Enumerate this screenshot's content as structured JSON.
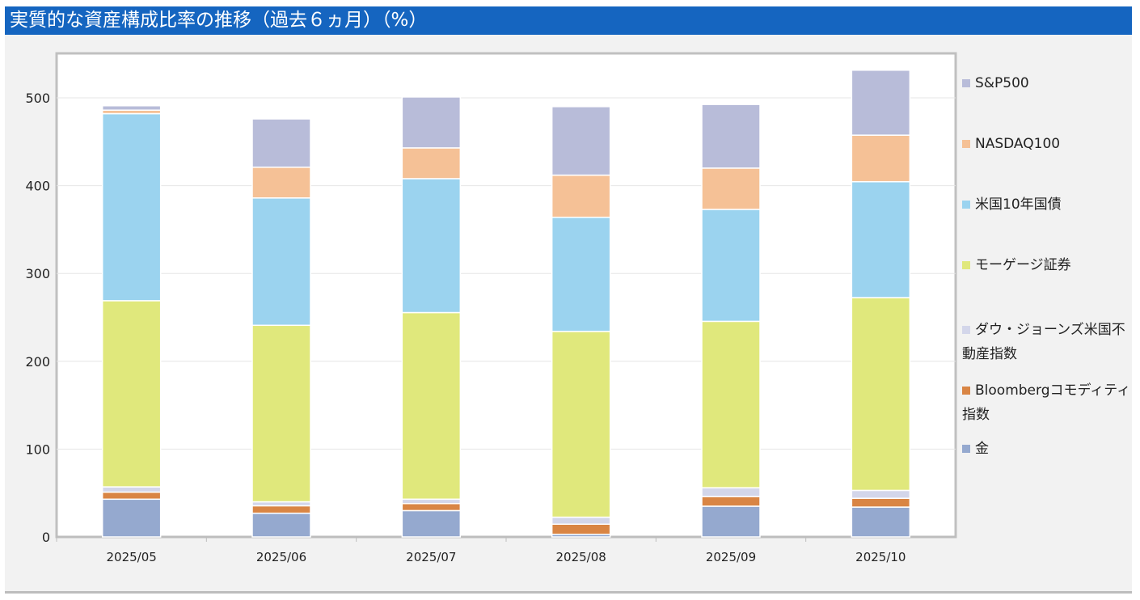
{
  "title": "実質的な資産構成比率の推移（過去６ヵ月）（%）",
  "chart_data": {
    "type": "bar",
    "stacked": true,
    "title": "実質的な資産構成比率の推移（過去６ヵ月）（%）",
    "categories": [
      "2025/05",
      "2025/06",
      "2025/07",
      "2025/08",
      "2025/09",
      "2025/10"
    ],
    "ylim": [
      0,
      550
    ],
    "yticks": [
      0,
      100,
      200,
      300,
      400,
      500
    ],
    "grid": true,
    "legend_position": "right",
    "series": [
      {
        "name": "金",
        "color": "#95a9cf",
        "values": [
          43,
          27,
          30,
          3,
          35,
          34
        ]
      },
      {
        "name": "Bloombergコモディティ指数",
        "color": "#d98544",
        "values": [
          8,
          8.5,
          8,
          11.5,
          11,
          10
        ]
      },
      {
        "name": "ダウ・ジョーンズ米国不動産指数",
        "color": "#d3d6ea",
        "values": [
          6,
          4.5,
          5,
          8,
          10,
          9
        ]
      },
      {
        "name": "モーゲージ証券",
        "color": "#e0e87c",
        "values": [
          212,
          201,
          212.5,
          211.5,
          189.5,
          219.5
        ]
      },
      {
        "name": "米国10年国債",
        "color": "#9bd3ef",
        "values": [
          213,
          145,
          152.5,
          130,
          127.5,
          132
        ]
      },
      {
        "name": "NASDAQ100",
        "color": "#f5c196",
        "values": [
          4,
          35,
          35,
          48,
          47,
          53
        ]
      },
      {
        "name": "S&P500",
        "color": "#b8bcd9",
        "values": [
          5,
          55,
          58,
          78,
          72.5,
          74
        ]
      }
    ]
  }
}
